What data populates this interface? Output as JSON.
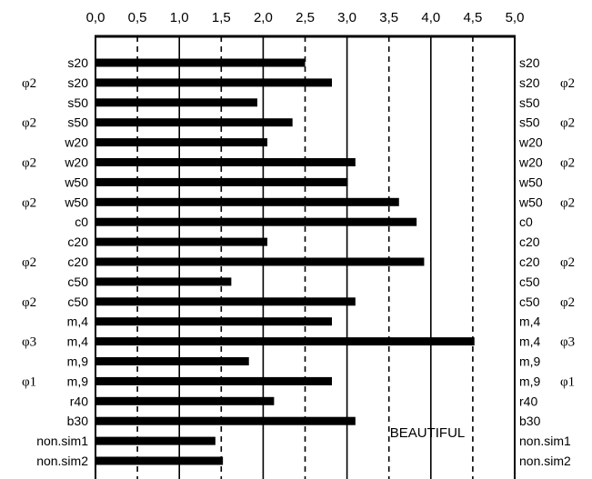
{
  "chart_data": {
    "type": "bar",
    "orientation": "horizontal",
    "xlim": [
      0,
      5
    ],
    "x_ticks": [
      "0,0",
      "0,5",
      "1,0",
      "1,5",
      "2,0",
      "2,5",
      "3,0",
      "3,5",
      "4,0",
      "4,5",
      "5,0"
    ],
    "solid_gridlines": [
      1.0,
      2.0,
      3.0,
      4.0
    ],
    "dashed_gridlines": [
      0.5,
      1.5,
      2.5,
      3.5,
      4.5
    ],
    "categories": [
      {
        "label": "s20",
        "phi": ""
      },
      {
        "label": "s20",
        "phi": "φ2"
      },
      {
        "label": "s50",
        "phi": ""
      },
      {
        "label": "s50",
        "phi": "φ2"
      },
      {
        "label": "w20",
        "phi": ""
      },
      {
        "label": "w20",
        "phi": "φ2"
      },
      {
        "label": "w50",
        "phi": ""
      },
      {
        "label": "w50",
        "phi": "φ2"
      },
      {
        "label": "c0",
        "phi": ""
      },
      {
        "label": "c20",
        "phi": ""
      },
      {
        "label": "c20",
        "phi": "φ2"
      },
      {
        "label": "c50",
        "phi": ""
      },
      {
        "label": "c50",
        "phi": "φ2"
      },
      {
        "label": "m,4",
        "phi": ""
      },
      {
        "label": "m,4",
        "phi": "φ3"
      },
      {
        "label": "m,9",
        "phi": ""
      },
      {
        "label": "m,9",
        "phi": "φ1"
      },
      {
        "label": "r40",
        "phi": ""
      },
      {
        "label": "b30",
        "phi": ""
      },
      {
        "label": "non.sim1",
        "phi": ""
      },
      {
        "label": "non.sim2",
        "phi": ""
      }
    ],
    "values": [
      2.5,
      2.82,
      1.93,
      2.35,
      2.05,
      3.1,
      3.01,
      3.62,
      3.83,
      2.05,
      3.92,
      1.62,
      3.1,
      2.82,
      4.52,
      1.83,
      2.82,
      2.13,
      3.1,
      1.43,
      1.52
    ],
    "bar_color": "#000000",
    "annotation": "BEAUTIFUL"
  }
}
